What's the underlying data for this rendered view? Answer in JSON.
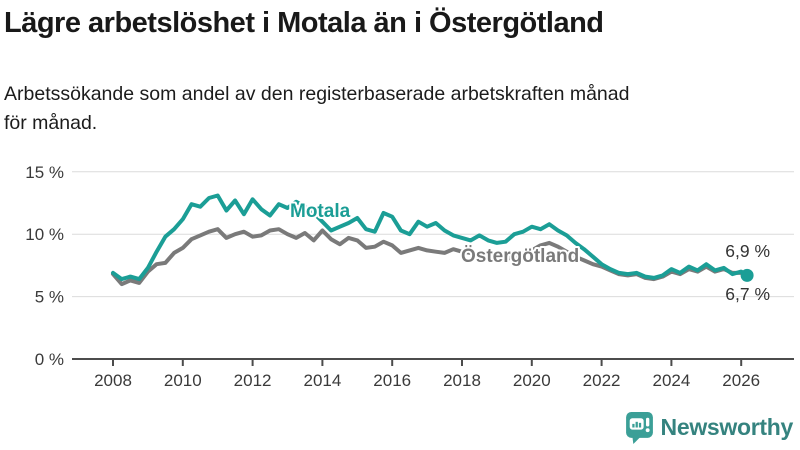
{
  "header": {
    "title": "Lägre arbetslöshet i Motala än i Östergötland",
    "subtitle_lines": [
      "Arbetssökande som andel av den registerbaserade arbetskraften månad",
      "för månad."
    ]
  },
  "colors": {
    "motala_line": "#1b9e96",
    "ostergotland_line": "#7a7a7a",
    "gridline": "#dcdcdc",
    "axis": "#4c4c4c",
    "logo_bubble": "#3b9f97",
    "logo_text": "#35837f"
  },
  "chart_data": {
    "type": "line",
    "title": "Lägre arbetslöshet i Motala än i Östergötland",
    "subtitle": "Arbetssökande som andel av den registerbaserade arbetskraften månad för månad.",
    "unit": "%",
    "grid": "horizontal",
    "legend": "inline-labels",
    "ylim": [
      0,
      16
    ],
    "xlim": [
      2007.6,
      2026.6
    ],
    "y_ticks": [
      {
        "value": 0,
        "label": "0 %"
      },
      {
        "value": 5,
        "label": "5 %"
      },
      {
        "value": 10,
        "label": "10 %"
      },
      {
        "value": 15,
        "label": "15 %"
      }
    ],
    "x_ticks": [
      {
        "value": 2008,
        "label": "2008"
      },
      {
        "value": 2010,
        "label": "2010"
      },
      {
        "value": 2012,
        "label": "2012"
      },
      {
        "value": 2014,
        "label": "2014"
      },
      {
        "value": 2016,
        "label": "2016"
      },
      {
        "value": 2018,
        "label": "2018"
      },
      {
        "value": 2020,
        "label": "2020"
      },
      {
        "value": 2022,
        "label": "2022"
      },
      {
        "value": 2024,
        "label": "2024"
      },
      {
        "value": 2026,
        "label": "2026"
      }
    ],
    "x": [
      2008,
      2008.25,
      2008.5,
      2008.75,
      2009,
      2009.25,
      2009.5,
      2009.75,
      2010,
      2010.25,
      2010.5,
      2010.75,
      2011,
      2011.25,
      2011.5,
      2011.75,
      2012,
      2012.25,
      2012.5,
      2012.75,
      2013,
      2013.25,
      2013.5,
      2013.75,
      2014,
      2014.25,
      2014.5,
      2014.75,
      2015,
      2015.25,
      2015.5,
      2015.75,
      2016,
      2016.25,
      2016.5,
      2016.75,
      2017,
      2017.25,
      2017.5,
      2017.75,
      2018,
      2018.25,
      2018.5,
      2018.75,
      2019,
      2019.25,
      2019.5,
      2019.75,
      2020,
      2020.25,
      2020.5,
      2020.75,
      2021,
      2021.25,
      2021.5,
      2021.75,
      2022,
      2022.25,
      2022.5,
      2022.75,
      2023,
      2023.25,
      2023.5,
      2023.75,
      2024,
      2024.25,
      2024.5,
      2024.75,
      2025,
      2025.25,
      2025.5,
      2025.75,
      2026,
      2026.17
    ],
    "series": [
      {
        "name": "Motala",
        "color": "#1b9e96",
        "end_label": "6,7 %",
        "end_value": 6.7,
        "values": [
          6.9,
          6.4,
          6.6,
          6.4,
          7.3,
          8.6,
          9.8,
          10.4,
          11.2,
          12.4,
          12.2,
          12.9,
          13.1,
          11.9,
          12.7,
          11.6,
          12.8,
          12.0,
          11.5,
          12.4,
          12.1,
          12.6,
          12.2,
          11.7,
          11.0,
          10.3,
          10.6,
          10.9,
          11.3,
          10.4,
          10.2,
          11.7,
          11.4,
          10.3,
          10.0,
          11.0,
          10.6,
          10.9,
          10.3,
          9.9,
          9.7,
          9.5,
          9.9,
          9.5,
          9.3,
          9.4,
          10.0,
          10.2,
          10.6,
          10.4,
          10.8,
          10.3,
          9.9,
          9.3,
          8.8,
          8.2,
          7.6,
          7.2,
          6.9,
          6.8,
          6.9,
          6.6,
          6.5,
          6.7,
          7.2,
          6.9,
          7.4,
          7.1,
          7.6,
          7.1,
          7.3,
          6.8,
          7.0,
          6.7
        ]
      },
      {
        "name": "Östergötland",
        "color": "#7a7a7a",
        "end_label": "6,9 %",
        "end_value": 6.9,
        "values": [
          6.8,
          6.0,
          6.3,
          6.1,
          7.0,
          7.6,
          7.7,
          8.5,
          8.9,
          9.6,
          9.9,
          10.2,
          10.4,
          9.7,
          10.0,
          10.2,
          9.8,
          9.9,
          10.3,
          10.4,
          10.0,
          9.7,
          10.1,
          9.5,
          10.3,
          9.6,
          9.2,
          9.7,
          9.5,
          8.9,
          9.0,
          9.4,
          9.1,
          8.5,
          8.7,
          8.9,
          8.7,
          8.6,
          8.5,
          8.8,
          8.6,
          8.5,
          8.3,
          8.2,
          8.1,
          8.0,
          8.2,
          8.5,
          8.7,
          9.1,
          9.3,
          9.0,
          8.6,
          8.2,
          7.9,
          7.6,
          7.4,
          7.1,
          6.8,
          6.7,
          6.8,
          6.5,
          6.4,
          6.6,
          7.0,
          6.8,
          7.2,
          7.0,
          7.4,
          7.0,
          7.2,
          6.9,
          6.9,
          6.9
        ]
      }
    ]
  },
  "logo": {
    "text": "Newsworthy"
  }
}
